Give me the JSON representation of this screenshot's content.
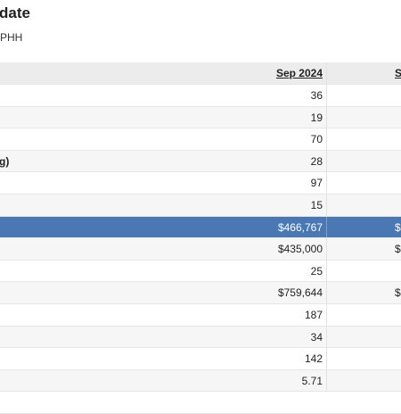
{
  "header": {
    "title": "date",
    "subtitle": "PHH"
  },
  "table": {
    "columns": [
      "Sep 2024",
      "S"
    ],
    "rows": [
      {
        "cells": [
          "36"
        ]
      },
      {
        "cells": [
          "19"
        ]
      },
      {
        "cells": [
          "70"
        ]
      },
      {
        "label": "g)",
        "cells": [
          "28"
        ]
      },
      {
        "cells": [
          "97"
        ]
      },
      {
        "cells": [
          "15"
        ]
      },
      {
        "cells": [
          "$466,767",
          "$"
        ],
        "highlighted": true
      },
      {
        "cells": [
          "$435,000",
          "$"
        ]
      },
      {
        "cells": [
          "25"
        ]
      },
      {
        "cells": [
          "$759,644",
          "$"
        ]
      },
      {
        "cells": [
          "187"
        ]
      },
      {
        "cells": [
          "34"
        ]
      },
      {
        "cells": [
          "142"
        ]
      },
      {
        "cells": [
          "5.71"
        ]
      }
    ]
  }
}
